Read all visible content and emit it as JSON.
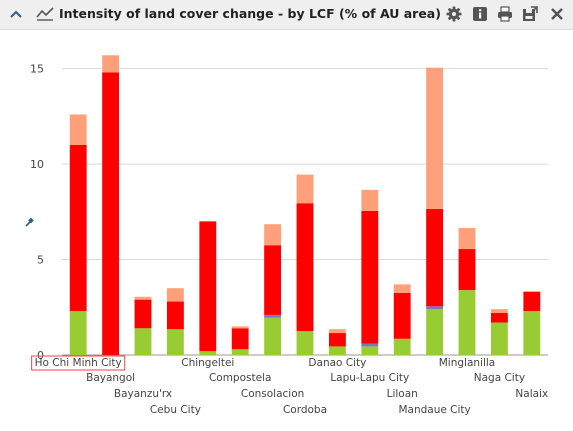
{
  "panel": {
    "title": "Intensity of land cover change - by LCF (% of AU area)",
    "icons": [
      "collapse-icon",
      "line-chart-icon",
      "settings-icon",
      "info-icon",
      "print-icon",
      "export-icon",
      "close-icon"
    ]
  },
  "colors": {
    "lcf1": "#99cc33",
    "lcf2": "#7a7ab8",
    "lcf3": "#ff0000",
    "lcf4": "#ffa07a",
    "grid": "#d9d9d9",
    "axis": "#999999",
    "text": "#444444",
    "highlight": "#e8464a"
  },
  "chart_data": {
    "type": "bar",
    "stacked": true,
    "categories": [
      "Ho Chi Minh City",
      "Bayangol",
      "Bayanzu'rx",
      "Cebu City",
      "Chingeltei",
      "Compostela",
      "Consolacion",
      "Cordoba",
      "Danao City",
      "Lapu-Lapu City",
      "Liloan",
      "Mandaue City",
      "Minglanilla",
      "Naga City",
      "Nalaix"
    ],
    "highlighted_category": "Ho Chi Minh City",
    "series": [
      {
        "values": [
          2.3,
          0,
          1.4,
          1.35,
          0.2,
          0.3,
          1.95,
          1.25,
          0.45,
          0.45,
          0.85,
          2.4,
          3.4,
          1.7,
          2.3
        ]
      },
      {
        "values": [
          0,
          0,
          0,
          0,
          0,
          0,
          0.15,
          0,
          0,
          0.15,
          0,
          0.15,
          0,
          0,
          0
        ]
      },
      {
        "values": [
          8.7,
          14.8,
          1.5,
          1.45,
          6.8,
          1.1,
          3.65,
          6.7,
          0.7,
          6.95,
          2.4,
          5.1,
          2.15,
          0.5,
          1.0
        ]
      },
      {
        "values": [
          1.6,
          0.9,
          0.15,
          0.7,
          0,
          0.1,
          1.1,
          1.5,
          0.2,
          1.1,
          0.45,
          7.4,
          1.1,
          0.2,
          0.05
        ]
      }
    ],
    "yticks": [
      0,
      5,
      10,
      15
    ],
    "ylim": [
      0,
      16.5
    ],
    "grid": true
  }
}
